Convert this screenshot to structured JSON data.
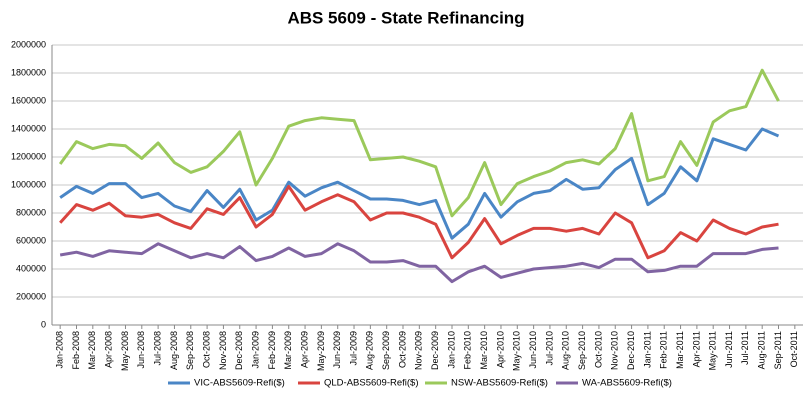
{
  "chart_data": {
    "type": "line",
    "title": "ABS 5609 - State Refinancing",
    "categories": [
      "Jan-2008",
      "Feb-2008",
      "Mar-2008",
      "Apr-2008",
      "May-2008",
      "Jun-2008",
      "Jul-2008",
      "Aug-2008",
      "Sep-2008",
      "Oct-2008",
      "Nov-2008",
      "Dec-2008",
      "Jan-2009",
      "Feb-2009",
      "Mar-2009",
      "Apr-2009",
      "May-2009",
      "Jun-2009",
      "Jul-2009",
      "Aug-2009",
      "Sep-2009",
      "Oct-2009",
      "Nov-2009",
      "Dec-2009",
      "Jan-2010",
      "Feb-2010",
      "Mar-2010",
      "Apr-2010",
      "May-2010",
      "Jun-2010",
      "Jul-2010",
      "Aug-2010",
      "Sep-2010",
      "Oct-2010",
      "Nov-2010",
      "Dec-2010",
      "Jan-2011",
      "Feb-2011",
      "Mar-2011",
      "Apr-2011",
      "May-2011",
      "Jun-2011",
      "Jul-2011",
      "Aug-2011",
      "Sep-2011",
      "Oct-2011"
    ],
    "series": [
      {
        "name": "VIC-ABS5609-Refi($)",
        "color": "#4a86c6",
        "values": [
          910000,
          990000,
          940000,
          1010000,
          1010000,
          910000,
          940000,
          850000,
          810000,
          960000,
          840000,
          970000,
          750000,
          820000,
          1020000,
          920000,
          980000,
          1020000,
          960000,
          900000,
          900000,
          890000,
          860000,
          890000,
          620000,
          720000,
          940000,
          770000,
          880000,
          940000,
          960000,
          1040000,
          970000,
          980000,
          1110000,
          1190000,
          860000,
          940000,
          1130000,
          1030000,
          1330000,
          1290000,
          1250000,
          1400000,
          1350000,
          null
        ]
      },
      {
        "name": "QLD-ABS5609-Refi($)",
        "color": "#d9443f",
        "values": [
          730000,
          860000,
          820000,
          870000,
          780000,
          770000,
          790000,
          730000,
          690000,
          830000,
          790000,
          910000,
          700000,
          790000,
          990000,
          820000,
          880000,
          930000,
          880000,
          750000,
          800000,
          800000,
          770000,
          720000,
          480000,
          590000,
          760000,
          580000,
          640000,
          690000,
          690000,
          670000,
          690000,
          650000,
          800000,
          730000,
          480000,
          530000,
          660000,
          600000,
          750000,
          690000,
          650000,
          700000,
          720000,
          null
        ]
      },
      {
        "name": "NSW-ABS5609-Refi($)",
        "color": "#9bc95b",
        "values": [
          1150000,
          1310000,
          1260000,
          1290000,
          1280000,
          1190000,
          1300000,
          1160000,
          1090000,
          1130000,
          1240000,
          1380000,
          1000000,
          1190000,
          1420000,
          1460000,
          1480000,
          1470000,
          1460000,
          1180000,
          1190000,
          1200000,
          1170000,
          1130000,
          780000,
          910000,
          1160000,
          860000,
          1010000,
          1060000,
          1100000,
          1160000,
          1180000,
          1150000,
          1260000,
          1510000,
          1030000,
          1060000,
          1310000,
          1140000,
          1450000,
          1530000,
          1560000,
          1820000,
          1600000,
          null
        ]
      },
      {
        "name": "WA-ABS5609-Refi($)",
        "color": "#8064a2",
        "values": [
          500000,
          520000,
          490000,
          530000,
          520000,
          510000,
          580000,
          530000,
          480000,
          510000,
          480000,
          560000,
          460000,
          490000,
          550000,
          490000,
          510000,
          580000,
          530000,
          450000,
          450000,
          460000,
          420000,
          420000,
          310000,
          380000,
          420000,
          340000,
          370000,
          400000,
          410000,
          420000,
          440000,
          410000,
          470000,
          470000,
          380000,
          390000,
          420000,
          420000,
          510000,
          510000,
          510000,
          540000,
          550000,
          null
        ]
      }
    ],
    "ylim": [
      0,
      2000000
    ],
    "yticks": [
      0,
      200000,
      400000,
      600000,
      800000,
      1000000,
      1200000,
      1400000,
      1600000,
      1800000,
      2000000
    ],
    "grid": true,
    "legend": "bottom"
  }
}
